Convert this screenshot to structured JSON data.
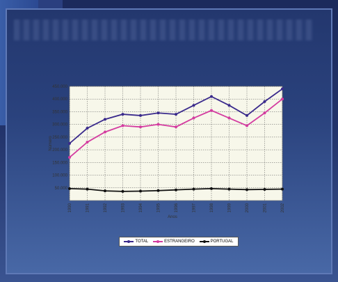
{
  "chart_data": {
    "type": "line",
    "xlabel": "Anos",
    "ylabel": "Número",
    "y_ticks": [
      "450.000",
      "400.000",
      "350.000",
      "300.000",
      "250.000",
      "200.000",
      "150.000",
      "100.000",
      "50.000"
    ],
    "ylim": [
      0,
      450000
    ],
    "categories": [
      "1990",
      "1991",
      "1992",
      "1993",
      "1994",
      "1995",
      "1996",
      "1997",
      "1998",
      "1999",
      "2000",
      "2001",
      "2002"
    ],
    "series": [
      {
        "name": "TOTAL",
        "color": "#3a2a8c",
        "values": [
          225000,
          285000,
          320000,
          340000,
          335000,
          345000,
          340000,
          375000,
          410000,
          375000,
          335000,
          390000,
          440000
        ]
      },
      {
        "name": "ESTRANGEIRO",
        "color": "#d43ca0",
        "values": [
          170000,
          230000,
          270000,
          295000,
          290000,
          300000,
          290000,
          325000,
          355000,
          325000,
          295000,
          345000,
          400000
        ]
      },
      {
        "name": "PORTUGAL",
        "color": "#111111",
        "values": [
          47000,
          45000,
          38000,
          36000,
          37000,
          39000,
          42000,
          45000,
          47000,
          45000,
          43000,
          44000,
          45000
        ]
      }
    ],
    "grid": true,
    "legend_position": "bottom"
  }
}
